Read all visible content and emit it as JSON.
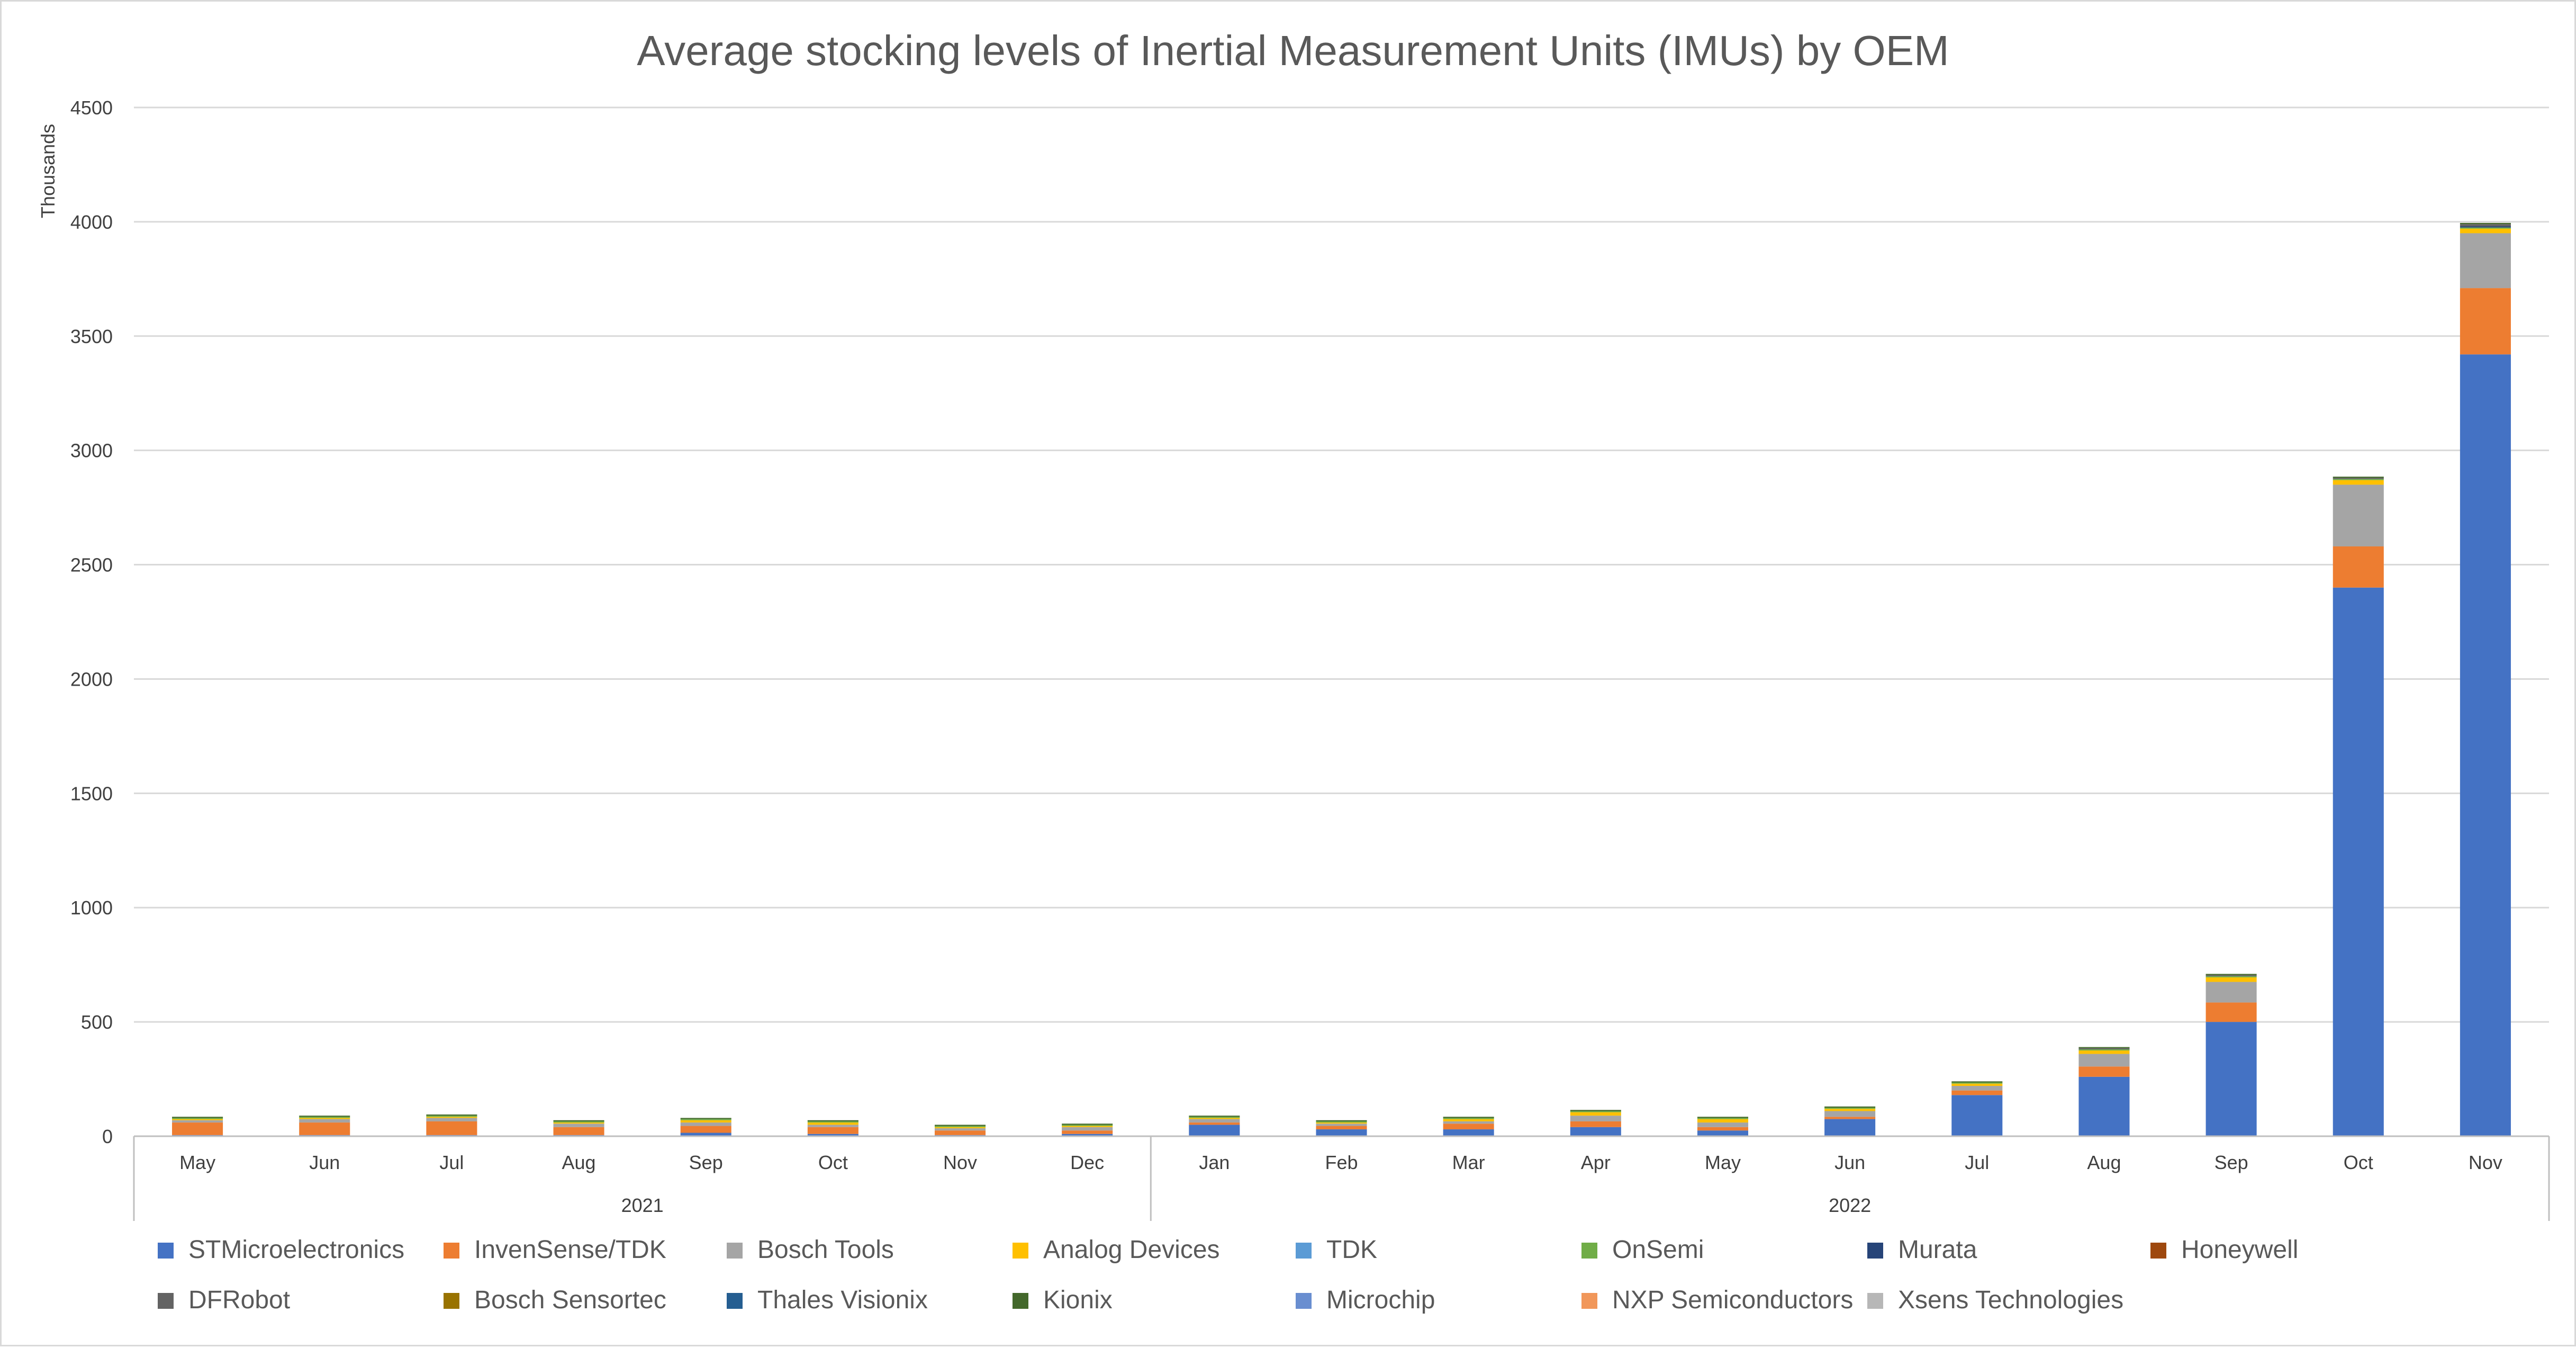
{
  "chart_data": {
    "type": "bar",
    "stacked": true,
    "title": "Average stocking levels of Inertial Measurement Units (IMUs) by OEM",
    "ylabel": "Thousands",
    "xlabel": "",
    "ylim": [
      0,
      4500
    ],
    "yticks": [
      0,
      500,
      1000,
      1500,
      2000,
      2500,
      3000,
      3500,
      4000,
      4500
    ],
    "grid": true,
    "legend_position": "bottom",
    "categories": [
      "May",
      "Jun",
      "Jul",
      "Aug",
      "Sep",
      "Oct",
      "Nov",
      "Dec",
      "Jan",
      "Feb",
      "Mar",
      "Apr",
      "May",
      "Jun",
      "Jul",
      "Aug",
      "Sep",
      "Oct",
      "Nov"
    ],
    "category_groups": [
      {
        "label": "2021",
        "start": 0,
        "end": 7
      },
      {
        "label": "2022",
        "start": 8,
        "end": 18
      }
    ],
    "series": [
      {
        "name": "STMicroelectronics",
        "color": "#4472C4",
        "values": [
          5,
          5,
          5,
          5,
          15,
          10,
          5,
          10,
          50,
          30,
          30,
          40,
          25,
          75,
          180,
          260,
          500,
          2400,
          3420
        ]
      },
      {
        "name": "InvenSense/TDK",
        "color": "#ED7D31",
        "values": [
          55,
          55,
          60,
          35,
          30,
          30,
          20,
          15,
          10,
          15,
          25,
          25,
          15,
          10,
          20,
          45,
          85,
          180,
          290
        ]
      },
      {
        "name": "Bosch Tools",
        "color": "#A5A5A5",
        "values": [
          10,
          15,
          15,
          15,
          15,
          10,
          10,
          15,
          15,
          10,
          10,
          25,
          20,
          25,
          20,
          55,
          90,
          270,
          240
        ]
      },
      {
        "name": "Analog Devices",
        "color": "#FFC000",
        "values": [
          5,
          5,
          5,
          5,
          10,
          10,
          5,
          5,
          5,
          5,
          10,
          15,
          15,
          10,
          10,
          15,
          20,
          20,
          20
        ]
      },
      {
        "name": "TDK",
        "color": "#5B9BD5",
        "values": [
          0,
          0,
          0,
          0,
          0,
          0,
          0,
          0,
          0,
          0,
          0,
          0,
          0,
          0,
          0,
          0,
          0,
          0,
          0
        ]
      },
      {
        "name": "OnSemi",
        "color": "#70AD47",
        "values": [
          5,
          5,
          5,
          5,
          5,
          5,
          5,
          5,
          5,
          5,
          5,
          5,
          5,
          5,
          5,
          5,
          5,
          5,
          5
        ]
      },
      {
        "name": "Murata",
        "color": "#264478",
        "values": [
          0,
          0,
          0,
          0,
          0,
          0,
          0,
          0,
          0,
          0,
          0,
          0,
          0,
          0,
          0,
          0,
          0,
          0,
          5
        ]
      },
      {
        "name": "Honeywell",
        "color": "#9E480E",
        "values": [
          0,
          0,
          0,
          0,
          0,
          0,
          0,
          0,
          0,
          0,
          0,
          0,
          0,
          0,
          0,
          0,
          0,
          0,
          0
        ]
      },
      {
        "name": "DFRobot",
        "color": "#636363",
        "values": [
          0,
          0,
          0,
          0,
          0,
          0,
          0,
          0,
          0,
          0,
          0,
          0,
          0,
          0,
          0,
          5,
          5,
          5,
          10
        ]
      },
      {
        "name": "Bosch Sensortec",
        "color": "#997300",
        "values": [
          0,
          0,
          0,
          0,
          0,
          0,
          0,
          0,
          0,
          0,
          0,
          0,
          0,
          0,
          0,
          0,
          0,
          0,
          0
        ]
      },
      {
        "name": "Thales Visionix",
        "color": "#255E91",
        "values": [
          0,
          0,
          0,
          0,
          0,
          0,
          0,
          0,
          0,
          0,
          0,
          0,
          0,
          0,
          0,
          0,
          0,
          0,
          0
        ]
      },
      {
        "name": "Kionix",
        "color": "#43682B",
        "values": [
          5,
          5,
          5,
          5,
          5,
          5,
          5,
          5,
          5,
          5,
          5,
          5,
          5,
          5,
          5,
          5,
          5,
          5,
          5
        ]
      },
      {
        "name": "Microchip",
        "color": "#698ED0",
        "values": [
          0,
          0,
          0,
          0,
          0,
          0,
          0,
          0,
          0,
          0,
          0,
          0,
          0,
          0,
          0,
          0,
          0,
          0,
          0
        ]
      },
      {
        "name": "NXP Semiconductors",
        "color": "#F1975A",
        "values": [
          0,
          0,
          0,
          0,
          0,
          0,
          0,
          0,
          0,
          0,
          0,
          0,
          0,
          0,
          0,
          0,
          0,
          0,
          0
        ]
      },
      {
        "name": "Xsens Technologies",
        "color": "#B7B7B7",
        "values": [
          0,
          0,
          0,
          0,
          0,
          0,
          0,
          0,
          0,
          0,
          0,
          0,
          0,
          0,
          0,
          0,
          0,
          0,
          0
        ]
      }
    ]
  }
}
